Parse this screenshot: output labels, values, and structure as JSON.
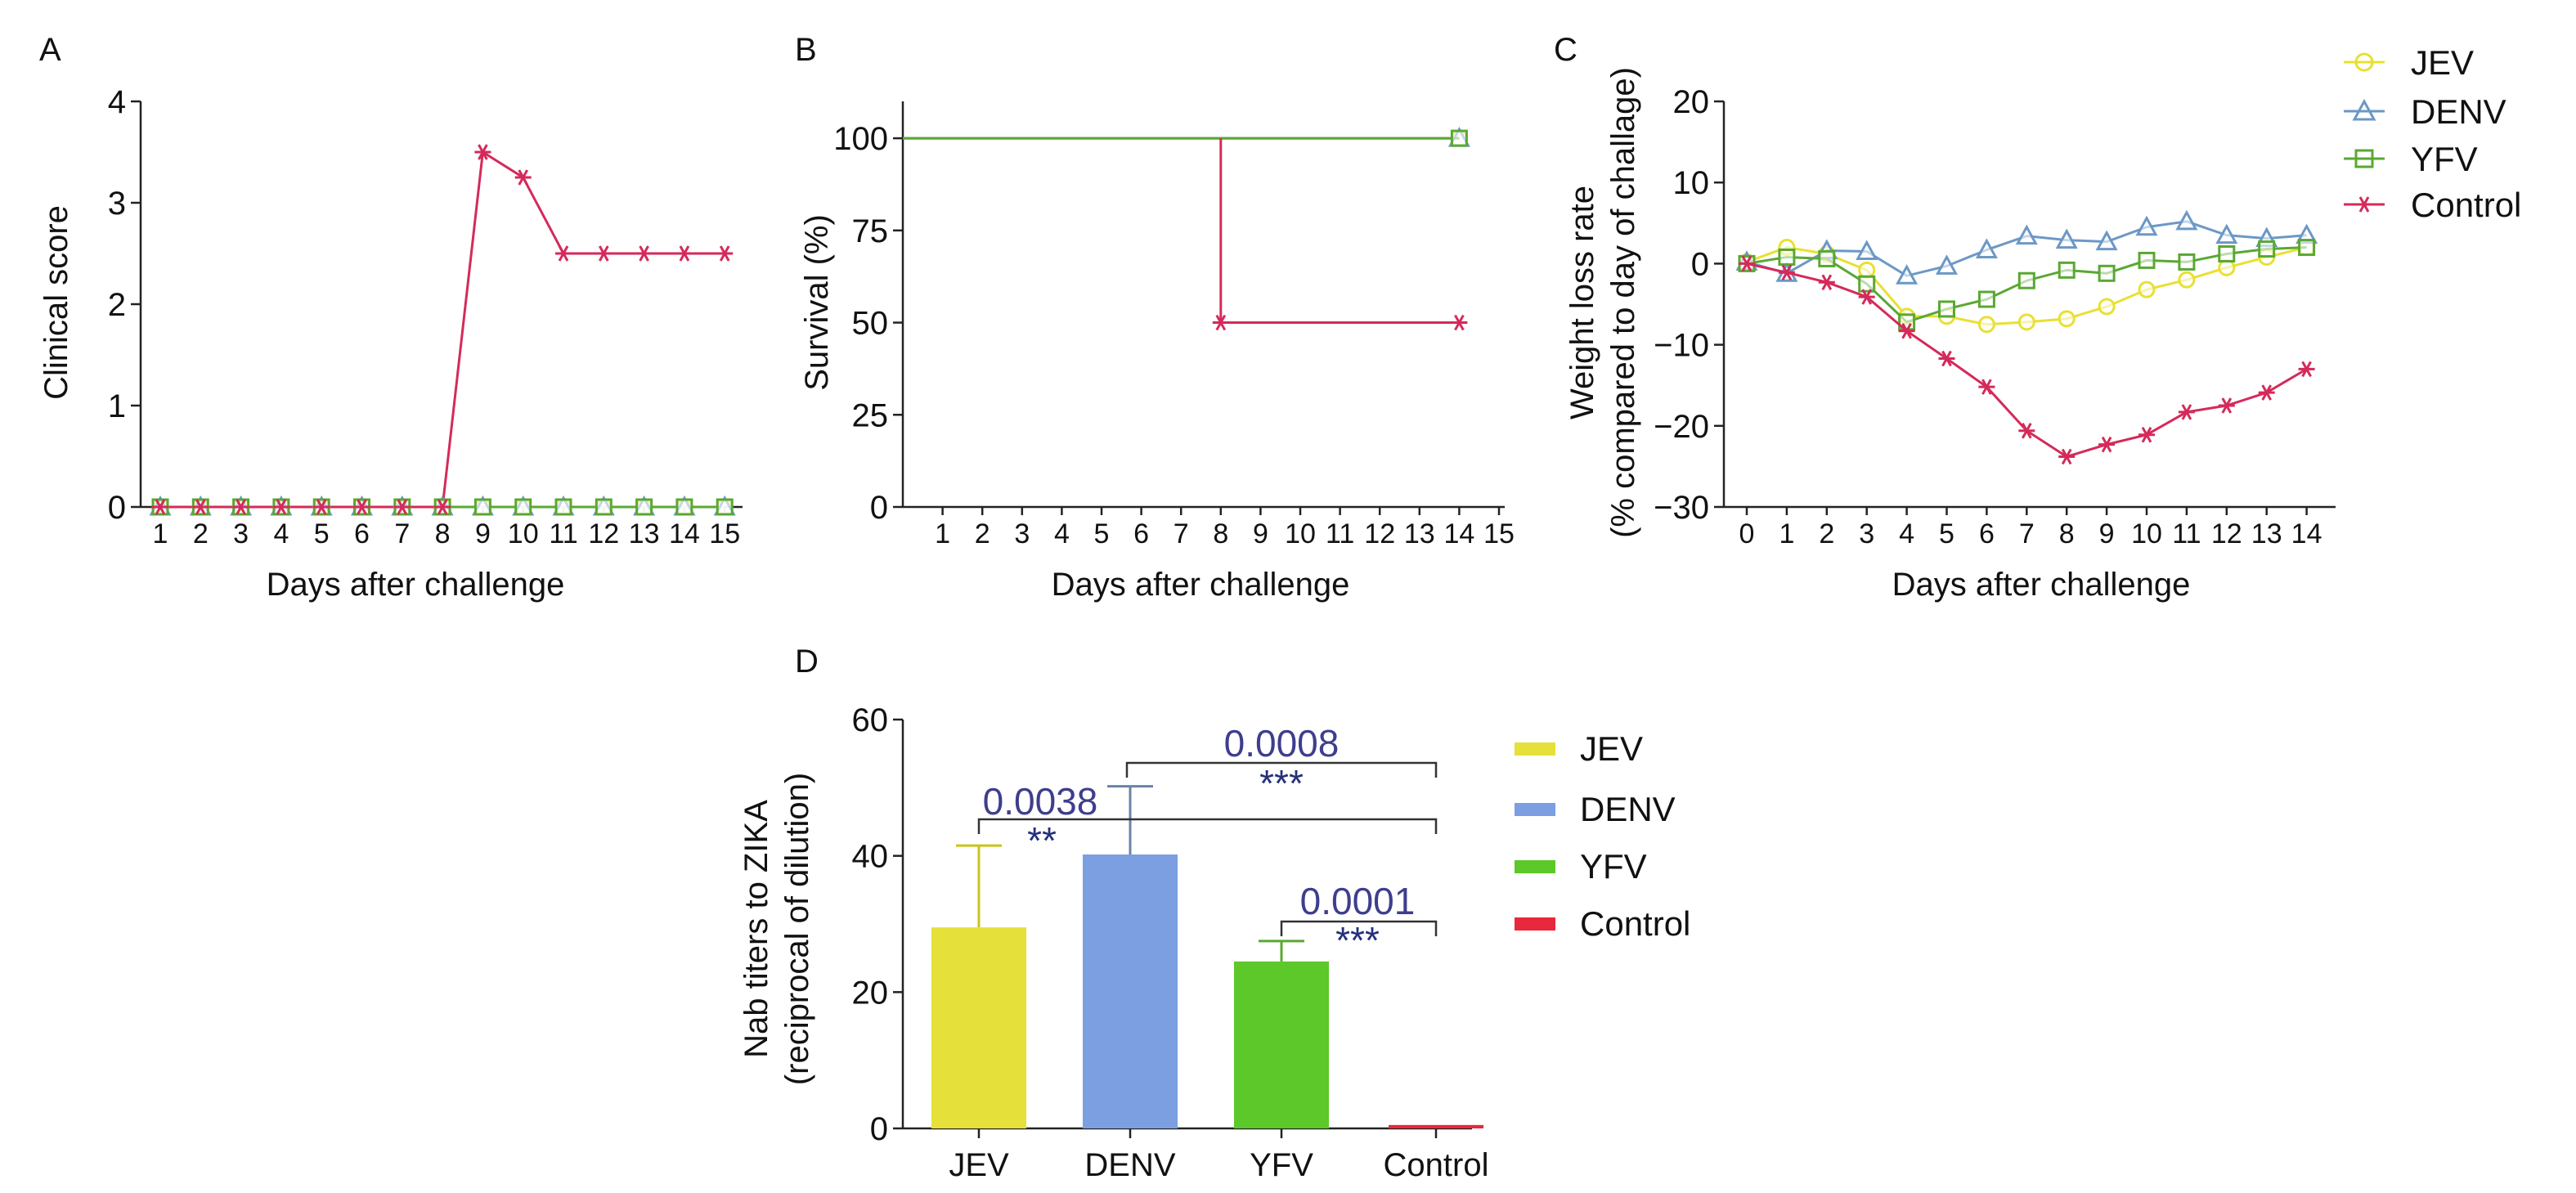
{
  "colors": {
    "JEV": "#e8e032",
    "DENV": "#6c98c6",
    "YFV": "#5aa832",
    "Control": "#d42a5a",
    "bar_JEV": "#e6e03a",
    "bar_DENV": "#7b9fe0",
    "bar_YFV": "#5cc82a",
    "bar_Control": "#e8283c",
    "annot_number": "#3e3e8e",
    "annot_star": "#24307a"
  },
  "chart_data": [
    {
      "panel": "A",
      "type": "line",
      "xlabel": "Days after challenge",
      "ylabel": "Clinical score",
      "ylim": [
        0,
        4
      ],
      "yticks": [
        0,
        1,
        2,
        3,
        4
      ],
      "x": [
        1,
        2,
        3,
        4,
        5,
        6,
        7,
        8,
        9,
        10,
        11,
        12,
        13,
        14,
        15
      ],
      "series": [
        {
          "name": "JEV",
          "marker": "circle",
          "values": [
            0,
            0,
            0,
            0,
            0,
            0,
            0,
            0,
            0,
            0,
            0,
            0,
            0,
            0,
            0
          ]
        },
        {
          "name": "DENV",
          "marker": "triangle",
          "values": [
            0,
            0,
            0,
            0,
            0,
            0,
            0,
            0,
            0,
            0,
            0,
            0,
            0,
            0,
            0
          ]
        },
        {
          "name": "YFV",
          "marker": "square",
          "values": [
            0,
            0,
            0,
            0,
            0,
            0,
            0,
            0,
            0,
            0,
            0,
            0,
            0,
            0,
            0
          ]
        },
        {
          "name": "Control",
          "marker": "asterisk",
          "values": [
            0,
            0,
            0,
            0,
            0,
            0,
            0,
            0,
            3.5,
            3.25,
            2.5,
            2.5,
            2.5,
            2.5,
            2.5
          ]
        }
      ]
    },
    {
      "panel": "B",
      "type": "line",
      "step": true,
      "xlabel": "Days after challenge",
      "ylabel": "Survival (%)",
      "ylim": [
        0,
        110
      ],
      "yticks": [
        0,
        25,
        50,
        75,
        100
      ],
      "xticks": [
        1,
        2,
        3,
        4,
        5,
        6,
        7,
        8,
        9,
        10,
        11,
        12,
        13,
        14,
        15
      ],
      "series": [
        {
          "name": "JEV",
          "marker": "circle",
          "points": [
            [
              0,
              100
            ],
            [
              14,
              100
            ]
          ],
          "marked": [
            [
              14,
              100
            ]
          ]
        },
        {
          "name": "DENV",
          "marker": "triangle",
          "points": [
            [
              0,
              100
            ],
            [
              14,
              100
            ]
          ],
          "marked": [
            [
              14,
              100
            ]
          ]
        },
        {
          "name": "YFV",
          "marker": "square",
          "points": [
            [
              0,
              100
            ],
            [
              14,
              100
            ]
          ],
          "marked": [
            [
              14,
              100
            ]
          ]
        },
        {
          "name": "Control",
          "marker": "asterisk",
          "points": [
            [
              8,
              100
            ],
            [
              8,
              50
            ],
            [
              14,
              50
            ]
          ],
          "marked": [
            [
              8,
              50
            ],
            [
              14,
              50
            ]
          ]
        }
      ]
    },
    {
      "panel": "C",
      "type": "line",
      "xlabel": "Days after challenge",
      "ylabel": "Weight loss rate",
      "ylabel2": "(% compared to day of challage)",
      "ylim": [
        -30,
        20
      ],
      "yticks": [
        -30,
        -20,
        -10,
        0,
        10,
        20
      ],
      "x": [
        0,
        1,
        2,
        3,
        4,
        5,
        6,
        7,
        8,
        9,
        10,
        11,
        12,
        13,
        14
      ],
      "legend": {
        "position": "top-right",
        "labels": [
          "JEV",
          "DENV",
          "YFV",
          "Control"
        ]
      },
      "series": [
        {
          "name": "JEV",
          "marker": "circle",
          "values": [
            0.2,
            2,
            1.2,
            -0.8,
            -6.5,
            -6.5,
            -7.5,
            -7.2,
            -6.8,
            -5.3,
            -3.2,
            -2,
            -0.5,
            0.8,
            2
          ]
        },
        {
          "name": "DENV",
          "marker": "triangle",
          "values": [
            0.2,
            -1.2,
            1.6,
            1.5,
            -1.5,
            -0.3,
            1.7,
            3.4,
            2.9,
            2.7,
            4.5,
            5.2,
            3.5,
            3.1,
            3.5
          ]
        },
        {
          "name": "YFV",
          "marker": "square",
          "values": [
            0,
            0.8,
            0.6,
            -2.5,
            -7.2,
            -5.6,
            -4.4,
            -2.1,
            -0.8,
            -1.2,
            0.4,
            0.2,
            1.2,
            1.8,
            2
          ]
        },
        {
          "name": "Control",
          "marker": "asterisk",
          "values": [
            0,
            -1.1,
            -2.3,
            -4.1,
            -8.3,
            -11.7,
            -15.2,
            -20.6,
            -23.8,
            -22.3,
            -21.1,
            -18.3,
            -17.5,
            -15.9,
            -13
          ]
        }
      ]
    },
    {
      "panel": "D",
      "type": "bar",
      "ylabel": "Nab titers to ZIKA",
      "ylabel2": "(reciprocal of dilution)",
      "ylim": [
        0,
        60
      ],
      "yticks": [
        0,
        20,
        40,
        60
      ],
      "categories": [
        "JEV",
        "DENV",
        "YFV",
        "Control"
      ],
      "values": [
        29.5,
        40.2,
        24.5,
        0.5
      ],
      "errors": [
        12,
        10,
        3,
        0
      ],
      "legend": {
        "position": "right",
        "labels": [
          "JEV",
          "DENV",
          "YFV",
          "Control"
        ]
      },
      "comparisons": [
        {
          "from": "DENV",
          "to": "Control",
          "p": "0.0008",
          "stars": "***"
        },
        {
          "from": "JEV",
          "to": "Control",
          "p": "0.0038",
          "stars": "**"
        },
        {
          "from": "YFV",
          "to": "Control",
          "p": "0.0001",
          "stars": "***"
        }
      ]
    }
  ]
}
